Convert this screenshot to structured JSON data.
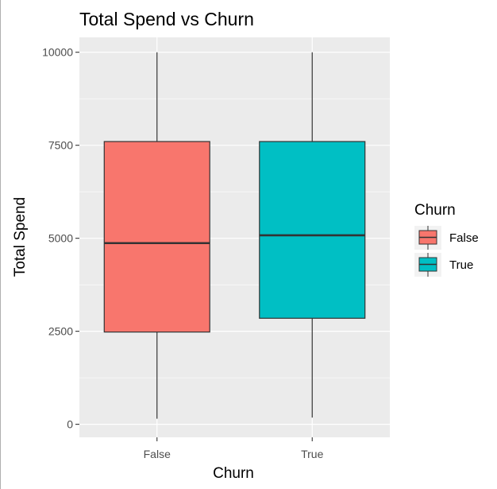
{
  "chart_data": {
    "type": "box",
    "title": "Total Spend vs Churn",
    "xlabel": "Churn",
    "ylabel": "Total Spend",
    "ylim": [
      -350,
      10400
    ],
    "y_ticks": [
      0,
      2500,
      5000,
      7500,
      10000
    ],
    "y_tick_labels": [
      "0",
      "2500",
      "5000",
      "7500",
      "10000"
    ],
    "categories": [
      "False",
      "True"
    ],
    "boxes": [
      {
        "category": "False",
        "min": 150,
        "q1": 2480,
        "median": 4870,
        "q3": 7600,
        "max": 10000,
        "color": "#F8766D"
      },
      {
        "category": "True",
        "min": 180,
        "q1": 2850,
        "median": 5080,
        "q3": 7600,
        "max": 10000,
        "color": "#00BFC4"
      }
    ],
    "legend": {
      "title": "Churn",
      "placement": "right",
      "items": [
        {
          "label": "False",
          "color": "#F8766D"
        },
        {
          "label": "True",
          "color": "#00BFC4"
        }
      ]
    },
    "grid": true
  }
}
